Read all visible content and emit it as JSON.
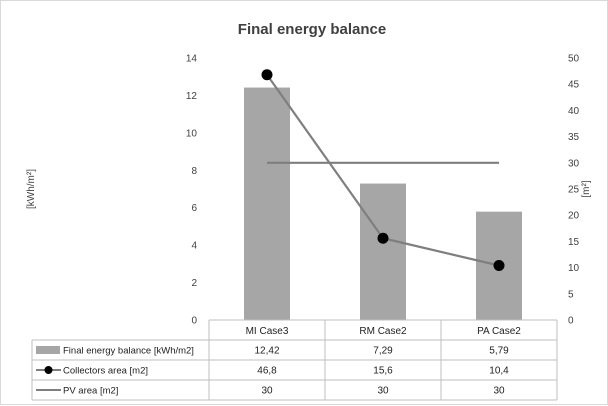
{
  "chart_data": {
    "type": "bar",
    "title": "Final energy balance",
    "categories": [
      "MI Case3",
      "RM Case2",
      "PA Case2"
    ],
    "ylabel_left": "[kWh/m²]",
    "ylabel_right": "[m²]",
    "ylim_left": [
      0,
      14
    ],
    "ylim_right": [
      0,
      50
    ],
    "yticks_left": [
      0,
      2,
      4,
      6,
      8,
      10,
      12,
      14
    ],
    "yticks_right": [
      0,
      5,
      10,
      15,
      20,
      25,
      30,
      35,
      40,
      45,
      50
    ],
    "grid": false,
    "series": [
      {
        "name": "Final energy balance [kWh/m2]",
        "type": "bar",
        "axis": "left",
        "values": [
          12.42,
          7.29,
          5.79
        ],
        "display_values": [
          "12,42",
          "7,29",
          "5,79"
        ],
        "color": "#a6a6a6"
      },
      {
        "name": "Collectors area [m2]",
        "type": "line-marker",
        "axis": "right",
        "values": [
          46.8,
          15.6,
          10.4
        ],
        "display_values": [
          "46,8",
          "15,6",
          "10,4"
        ],
        "color": "#7f7f7f",
        "marker_color": "#000000"
      },
      {
        "name": "PV area [m2]",
        "type": "line",
        "axis": "right",
        "values": [
          30,
          30,
          30
        ],
        "display_values": [
          "30",
          "30",
          "30"
        ],
        "color": "#7f7f7f"
      }
    ]
  }
}
